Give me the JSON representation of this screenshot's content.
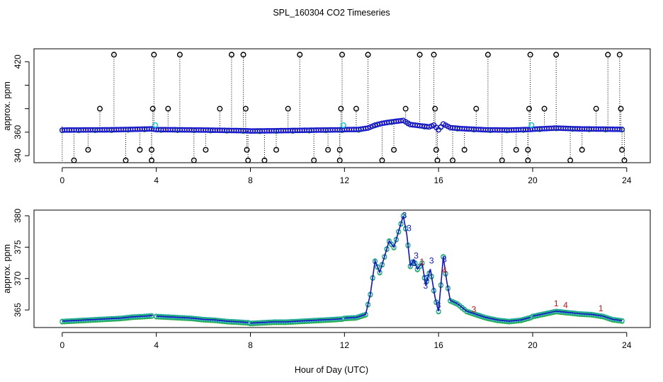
{
  "figure": {
    "title": "SPL_160304  CO2 Timeseries",
    "xlabel": "Hour of Day (UTC)"
  },
  "chart_data": [
    {
      "type": "scatter",
      "name": "top-panel",
      "ylabel": "approx. ppm",
      "xlim": [
        -1.2,
        25.0
      ],
      "ylim": [
        334,
        431
      ],
      "xticks": [
        0,
        4,
        8,
        12,
        16,
        20,
        24
      ],
      "yticks": [
        340,
        360,
        380,
        400,
        420
      ],
      "ytick_labels": [
        {
          "value": 340,
          "label": "340"
        },
        {
          "value": 360,
          "label": "360"
        },
        {
          "value": 420,
          "label": "420"
        }
      ],
      "baseline": [
        [
          0.0,
          361.8
        ],
        [
          1.0,
          361.9
        ],
        [
          2.0,
          362.0
        ],
        [
          3.0,
          362.4
        ],
        [
          3.8,
          362.8
        ],
        [
          4.0,
          362.2
        ],
        [
          5.0,
          362.0
        ],
        [
          6.0,
          361.8
        ],
        [
          7.0,
          361.5
        ],
        [
          7.9,
          361.2
        ],
        [
          8.0,
          361.0
        ],
        [
          9.0,
          361.2
        ],
        [
          10.0,
          361.5
        ],
        [
          11.0,
          361.8
        ],
        [
          11.9,
          362.0
        ],
        [
          12.0,
          362.2
        ],
        [
          12.6,
          362.3
        ],
        [
          13.0,
          363.5
        ],
        [
          13.3,
          366.0
        ],
        [
          13.6,
          367.5
        ],
        [
          14.0,
          368.8
        ],
        [
          14.5,
          370.0
        ],
        [
          14.8,
          366.5
        ],
        [
          15.2,
          365.5
        ],
        [
          15.6,
          364.5
        ],
        [
          15.8,
          366.0
        ],
        [
          16.0,
          362.0
        ],
        [
          16.2,
          367.0
        ],
        [
          16.5,
          363.8
        ],
        [
          17.0,
          363.0
        ],
        [
          18.0,
          362.0
        ],
        [
          19.0,
          361.8
        ],
        [
          19.9,
          362.3
        ],
        [
          20.0,
          362.5
        ],
        [
          21.0,
          363.5
        ],
        [
          22.0,
          362.8
        ],
        [
          23.0,
          362.6
        ],
        [
          23.8,
          362.4
        ]
      ],
      "outliers": [
        {
          "x": 0.5,
          "y": 336
        },
        {
          "x": 1.1,
          "y": 345
        },
        {
          "x": 1.6,
          "y": 380
        },
        {
          "x": 2.2,
          "y": 426
        },
        {
          "x": 2.7,
          "y": 336
        },
        {
          "x": 3.3,
          "y": 345
        },
        {
          "x": 3.8,
          "y": 336
        },
        {
          "x": 3.8,
          "y": 345
        },
        {
          "x": 3.85,
          "y": 380
        },
        {
          "x": 3.9,
          "y": 426
        },
        {
          "x": 4.5,
          "y": 380
        },
        {
          "x": 5.0,
          "y": 426
        },
        {
          "x": 5.6,
          "y": 336
        },
        {
          "x": 6.1,
          "y": 345
        },
        {
          "x": 6.7,
          "y": 380
        },
        {
          "x": 7.2,
          "y": 426
        },
        {
          "x": 7.7,
          "y": 426
        },
        {
          "x": 7.8,
          "y": 380
        },
        {
          "x": 7.85,
          "y": 345
        },
        {
          "x": 7.9,
          "y": 336
        },
        {
          "x": 8.6,
          "y": 336
        },
        {
          "x": 9.1,
          "y": 345
        },
        {
          "x": 9.6,
          "y": 380
        },
        {
          "x": 10.1,
          "y": 426
        },
        {
          "x": 10.7,
          "y": 336
        },
        {
          "x": 11.3,
          "y": 345
        },
        {
          "x": 11.8,
          "y": 336
        },
        {
          "x": 11.8,
          "y": 345
        },
        {
          "x": 11.85,
          "y": 380
        },
        {
          "x": 11.9,
          "y": 426
        },
        {
          "x": 12.5,
          "y": 380
        },
        {
          "x": 13.0,
          "y": 426
        },
        {
          "x": 13.6,
          "y": 336
        },
        {
          "x": 14.1,
          "y": 345
        },
        {
          "x": 14.6,
          "y": 380
        },
        {
          "x": 15.2,
          "y": 426
        },
        {
          "x": 15.8,
          "y": 426
        },
        {
          "x": 15.85,
          "y": 380
        },
        {
          "x": 15.9,
          "y": 345
        },
        {
          "x": 15.95,
          "y": 336
        },
        {
          "x": 16.6,
          "y": 336
        },
        {
          "x": 17.1,
          "y": 345
        },
        {
          "x": 17.6,
          "y": 380
        },
        {
          "x": 18.1,
          "y": 426
        },
        {
          "x": 18.7,
          "y": 336
        },
        {
          "x": 19.3,
          "y": 345
        },
        {
          "x": 19.8,
          "y": 336
        },
        {
          "x": 19.8,
          "y": 345
        },
        {
          "x": 19.85,
          "y": 380
        },
        {
          "x": 19.9,
          "y": 426
        },
        {
          "x": 20.5,
          "y": 380
        },
        {
          "x": 21.0,
          "y": 426
        },
        {
          "x": 21.6,
          "y": 336
        },
        {
          "x": 22.1,
          "y": 345
        },
        {
          "x": 22.7,
          "y": 380
        },
        {
          "x": 23.2,
          "y": 426
        },
        {
          "x": 23.7,
          "y": 426
        },
        {
          "x": 23.75,
          "y": 380
        },
        {
          "x": 23.8,
          "y": 345
        },
        {
          "x": 23.9,
          "y": 336
        }
      ],
      "cyan_points": [
        {
          "x": 3.95,
          "y": 366
        },
        {
          "x": 11.95,
          "y": 366
        },
        {
          "x": 19.95,
          "y": 366
        }
      ],
      "colors": {
        "baseline": "#1111cc",
        "outliers": "#000000",
        "cyan": "#00cccc",
        "green": "#22aa22",
        "red": "#cc1111"
      }
    },
    {
      "type": "line",
      "name": "bottom-panel",
      "ylabel": "approx. ppm",
      "xlim": [
        -1.2,
        25.0
      ],
      "ylim": [
        362.2,
        380.9
      ],
      "xticks": [
        0,
        4,
        8,
        12,
        16,
        20,
        24
      ],
      "yticks": [
        365,
        370,
        375,
        380
      ],
      "segments": [
        [
          [
            0.0,
            363.2
          ],
          [
            0.5,
            363.3
          ],
          [
            1.0,
            363.4
          ],
          [
            1.5,
            363.5
          ],
          [
            2.0,
            363.6
          ],
          [
            2.5,
            363.7
          ],
          [
            3.0,
            363.9
          ],
          [
            3.5,
            364.0
          ],
          [
            3.85,
            364.1
          ]
        ],
        [
          [
            4.0,
            364.0
          ],
          [
            4.5,
            363.9
          ],
          [
            5.0,
            363.8
          ],
          [
            5.5,
            363.7
          ],
          [
            6.0,
            363.5
          ],
          [
            6.5,
            363.4
          ],
          [
            7.0,
            363.2
          ],
          [
            7.5,
            363.1
          ],
          [
            7.9,
            363.0
          ]
        ],
        [
          [
            8.0,
            362.9
          ],
          [
            8.5,
            363.0
          ],
          [
            9.0,
            363.1
          ],
          [
            9.5,
            363.1
          ],
          [
            10.0,
            363.2
          ],
          [
            10.5,
            363.3
          ],
          [
            11.0,
            363.4
          ],
          [
            11.5,
            363.5
          ],
          [
            11.9,
            363.6
          ]
        ],
        [
          [
            12.0,
            363.7
          ],
          [
            12.5,
            363.8
          ],
          [
            12.9,
            364.3
          ],
          [
            13.1,
            367.5
          ],
          [
            13.3,
            372.8
          ],
          [
            13.5,
            371.0
          ],
          [
            13.7,
            373.5
          ],
          [
            13.9,
            376.0
          ],
          [
            14.1,
            375.0
          ],
          [
            14.3,
            377.5
          ],
          [
            14.5,
            380.0
          ],
          [
            14.65,
            377.0
          ],
          [
            14.8,
            372.0
          ],
          [
            14.95,
            373.0
          ],
          [
            15.1,
            371.5
          ],
          [
            15.3,
            372.5
          ],
          [
            15.45,
            369.0
          ],
          [
            15.65,
            371.5
          ],
          [
            15.85,
            367.0
          ],
          [
            16.0,
            364.8
          ],
          [
            16.1,
            369.0
          ],
          [
            16.2,
            373.5
          ],
          [
            16.35,
            369.5
          ],
          [
            16.5,
            366.5
          ],
          [
            16.8,
            366.0
          ],
          [
            17.2,
            364.8
          ],
          [
            17.6,
            364.3
          ],
          [
            18.0,
            363.8
          ],
          [
            18.5,
            363.4
          ],
          [
            19.0,
            363.2
          ],
          [
            19.5,
            363.4
          ],
          [
            19.9,
            363.8
          ]
        ],
        [
          [
            20.0,
            364.0
          ],
          [
            20.5,
            364.4
          ],
          [
            21.0,
            364.8
          ],
          [
            21.5,
            364.6
          ],
          [
            22.0,
            364.4
          ],
          [
            22.5,
            364.3
          ],
          [
            23.0,
            364.0
          ],
          [
            23.4,
            363.5
          ],
          [
            23.8,
            363.3
          ]
        ]
      ],
      "annotations": [
        {
          "x": 14.55,
          "y": 379.6,
          "text": "3",
          "color": "#1111cc"
        },
        {
          "x": 14.75,
          "y": 377.6,
          "text": "3",
          "color": "#1111cc"
        },
        {
          "x": 14.95,
          "y": 372.0,
          "text": "3",
          "color": "#1111cc"
        },
        {
          "x": 15.05,
          "y": 373.2,
          "text": "3",
          "color": "#1111cc"
        },
        {
          "x": 15.3,
          "y": 372.2,
          "text": "1",
          "color": "#cc1111"
        },
        {
          "x": 15.7,
          "y": 372.4,
          "text": "3",
          "color": "#1111cc"
        },
        {
          "x": 15.5,
          "y": 369.6,
          "text": "3",
          "color": "#1111cc"
        },
        {
          "x": 15.45,
          "y": 368.4,
          "text": "3",
          "color": "#1111cc"
        },
        {
          "x": 16.25,
          "y": 372.6,
          "text": "3",
          "color": "#1111cc"
        },
        {
          "x": 16.25,
          "y": 370.8,
          "text": "4",
          "color": "#cc1111"
        },
        {
          "x": 16.0,
          "y": 365.3,
          "text": "3",
          "color": "#1111cc"
        },
        {
          "x": 17.5,
          "y": 364.6,
          "text": "3",
          "color": "#cc1111"
        },
        {
          "x": 21.0,
          "y": 365.6,
          "text": "1",
          "color": "#cc1111"
        },
        {
          "x": 21.4,
          "y": 365.3,
          "text": "4",
          "color": "#cc1111"
        },
        {
          "x": 22.9,
          "y": 364.8,
          "text": "1",
          "color": "#cc1111"
        }
      ],
      "colors": {
        "line": "#1111cc",
        "marker": "#22aaaa",
        "marker_alt": "#22aa22",
        "red": "#cc1111"
      }
    }
  ]
}
